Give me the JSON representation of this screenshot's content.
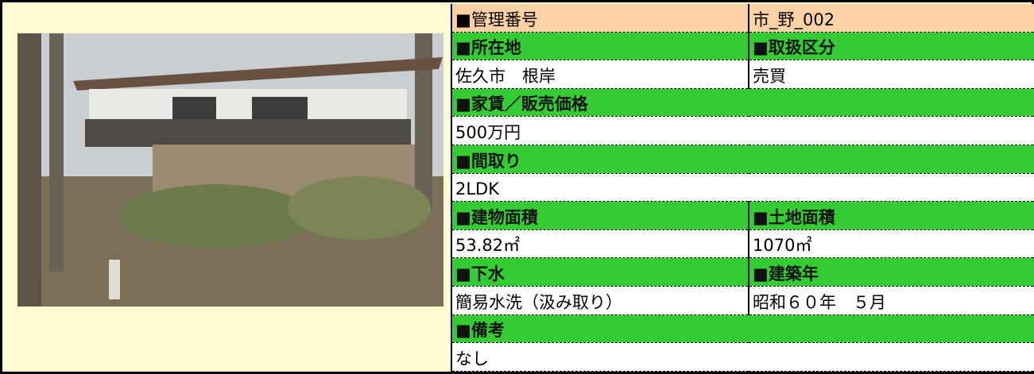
{
  "table": {
    "rows": [
      [
        "■管理番号",
        "市_野_002"
      ],
      [
        "■所在地",
        "■取扱区分"
      ],
      [
        "佐久市　根岸",
        "売買"
      ],
      [
        "■家賃／販売価格"
      ],
      [
        "500万円"
      ],
      [
        "■間取り"
      ],
      [
        "2LDK"
      ],
      [
        "■建物面積",
        "■土地面積"
      ],
      [
        "53.82㎡",
        "1070㎡"
      ],
      [
        "■下水",
        "■建築年"
      ],
      [
        "簡易水洗（汲み取り）",
        "昭和６０年　５月"
      ],
      [
        "■備考"
      ],
      [
        "なし"
      ]
    ]
  }
}
